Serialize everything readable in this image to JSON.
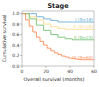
{
  "chart_data": {
    "type": "step",
    "title": "Stage",
    "x_label": "Overall survival (months)",
    "y_label": "Cumulative survival",
    "xlim": [
      0,
      60
    ],
    "ylim": [
      0.0,
      1.05
    ],
    "xticks": [
      0,
      20,
      40,
      60
    ],
    "yticks": [
      {
        "value": 0.0,
        "label": "0.0"
      },
      0.2,
      0.4,
      0.6,
      0.8,
      {
        "value": 1.0,
        "label": "1.0"
      }
    ],
    "grid": false,
    "series": [
      {
        "name": "I (N=18)",
        "color": "#6baed6",
        "x": [
          0,
          8,
          12,
          18,
          24,
          30,
          36,
          42,
          48,
          54,
          60
        ],
        "values": [
          1.0,
          1.0,
          0.94,
          0.9,
          0.87,
          0.84,
          0.84,
          0.84,
          0.84,
          0.84,
          0.84
        ]
      },
      {
        "name": "III (N=18)",
        "color": "#fed98e",
        "x": [
          0,
          6,
          12,
          18,
          24,
          30,
          36,
          42,
          48,
          54,
          60
        ],
        "values": [
          1.0,
          0.94,
          0.88,
          0.8,
          0.75,
          0.72,
          0.7,
          0.7,
          0.7,
          0.7,
          0.7
        ]
      },
      {
        "name": "II (N=23)",
        "color": "#74c476",
        "x": [
          0,
          6,
          12,
          18,
          24,
          30,
          36,
          42,
          48,
          54,
          60
        ],
        "values": [
          1.0,
          0.9,
          0.78,
          0.68,
          0.6,
          0.55,
          0.52,
          0.5,
          0.5,
          0.5,
          0.5
        ]
      },
      {
        "name": "IV (N=60)",
        "color": "#fc8d59",
        "x": [
          0,
          3,
          6,
          9,
          12,
          15,
          18,
          21,
          24,
          27,
          30,
          33,
          36,
          39,
          42,
          45,
          48,
          51,
          54,
          57,
          60
        ],
        "values": [
          1.0,
          0.88,
          0.76,
          0.65,
          0.55,
          0.47,
          0.4,
          0.34,
          0.29,
          0.25,
          0.22,
          0.19,
          0.17,
          0.15,
          0.14,
          0.13,
          0.12,
          0.12,
          0.12,
          0.12,
          0.12
        ]
      }
    ]
  }
}
